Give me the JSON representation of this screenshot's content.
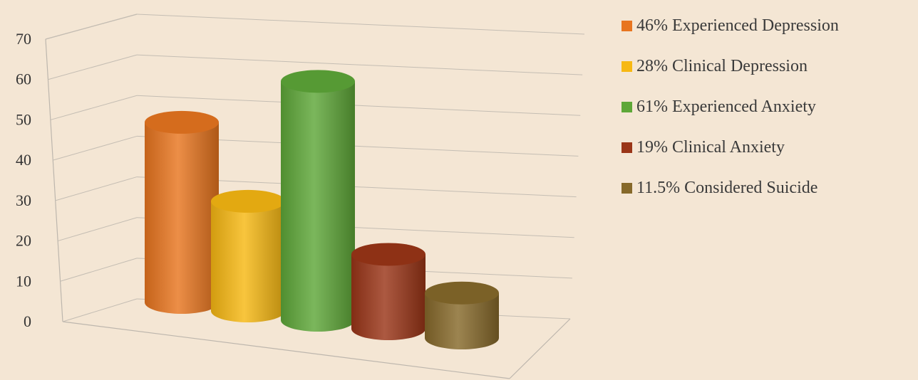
{
  "chart_data": {
    "type": "bar",
    "style": "3d-cylinder",
    "ylim": [
      0,
      70
    ],
    "yticks": [
      0,
      10,
      20,
      30,
      40,
      50,
      60,
      70
    ],
    "grid": true,
    "legend_position": "right",
    "series": [
      {
        "name": "46% Experienced Depression",
        "value": 46,
        "color": "#e8751f"
      },
      {
        "name": "28% Clinical Depression",
        "value": 28,
        "color": "#f7b813"
      },
      {
        "name": "61% Experienced Anxiety",
        "value": 61,
        "color": "#5ea738"
      },
      {
        "name": "19% Clinical Anxiety",
        "value": 19,
        "color": "#9a3517"
      },
      {
        "name": "11.5% Considered Suicide",
        "value": 11.5,
        "color": "#86692a"
      }
    ]
  }
}
